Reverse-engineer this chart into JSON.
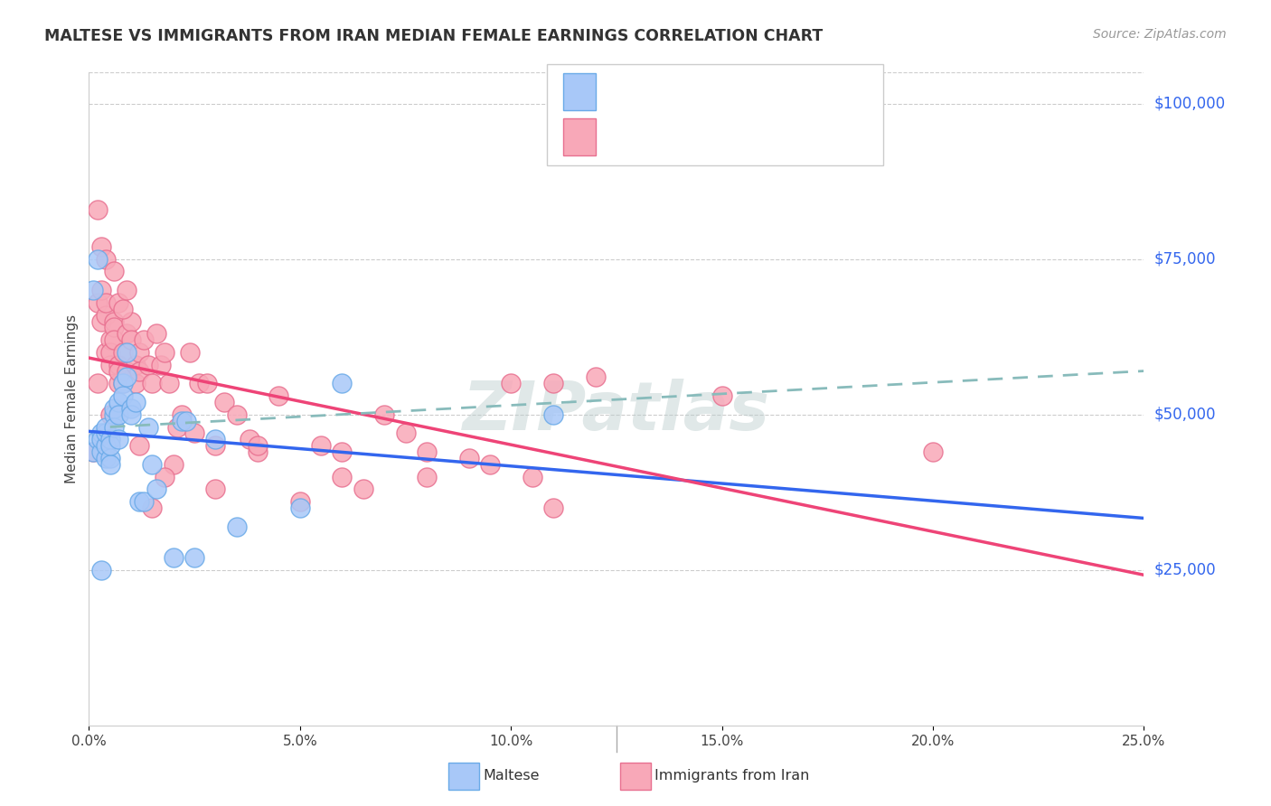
{
  "title": "MALTESE VS IMMIGRANTS FROM IRAN MEDIAN FEMALE EARNINGS CORRELATION CHART",
  "source": "Source: ZipAtlas.com",
  "ylabel": "Median Female Earnings",
  "ytick_labels": [
    "$25,000",
    "$50,000",
    "$75,000",
    "$100,000"
  ],
  "ytick_values": [
    25000,
    50000,
    75000,
    100000
  ],
  "ylim": [
    0,
    105000
  ],
  "xlim": [
    0,
    0.25
  ],
  "watermark": "ZIPatlas",
  "maltese_color": "#a8c8f8",
  "iran_color": "#f8a8b8",
  "maltese_edge": "#6aaae8",
  "iran_edge": "#e87090",
  "blue_line_color": "#3366ee",
  "pink_line_color": "#ee4477",
  "dashed_line_color": "#88bbbb",
  "maltese_x": [
    0.001,
    0.002,
    0.002,
    0.003,
    0.003,
    0.003,
    0.004,
    0.004,
    0.004,
    0.004,
    0.005,
    0.005,
    0.005,
    0.005,
    0.006,
    0.006,
    0.006,
    0.007,
    0.007,
    0.007,
    0.008,
    0.008,
    0.009,
    0.009,
    0.01,
    0.01,
    0.011,
    0.012,
    0.013,
    0.014,
    0.015,
    0.016,
    0.02,
    0.022,
    0.023,
    0.025,
    0.03,
    0.035,
    0.05,
    0.06,
    0.001,
    0.003,
    0.11
  ],
  "maltese_y": [
    44000,
    75000,
    46000,
    47000,
    44000,
    46000,
    43000,
    45000,
    47000,
    48000,
    46000,
    43000,
    42000,
    45000,
    50000,
    51000,
    48000,
    52000,
    50000,
    46000,
    55000,
    53000,
    60000,
    56000,
    51000,
    50000,
    52000,
    36000,
    36000,
    48000,
    42000,
    38000,
    27000,
    49000,
    49000,
    27000,
    46000,
    32000,
    35000,
    55000,
    70000,
    25000,
    50000
  ],
  "iran_x": [
    0.001,
    0.002,
    0.002,
    0.003,
    0.003,
    0.004,
    0.004,
    0.004,
    0.005,
    0.005,
    0.005,
    0.006,
    0.006,
    0.006,
    0.007,
    0.007,
    0.007,
    0.008,
    0.008,
    0.009,
    0.009,
    0.01,
    0.01,
    0.011,
    0.011,
    0.012,
    0.012,
    0.013,
    0.014,
    0.015,
    0.016,
    0.017,
    0.018,
    0.019,
    0.02,
    0.021,
    0.022,
    0.024,
    0.026,
    0.028,
    0.03,
    0.032,
    0.035,
    0.038,
    0.04,
    0.045,
    0.05,
    0.055,
    0.06,
    0.065,
    0.07,
    0.075,
    0.08,
    0.09,
    0.095,
    0.1,
    0.105,
    0.11,
    0.12,
    0.002,
    0.003,
    0.004,
    0.005,
    0.006,
    0.007,
    0.008,
    0.009,
    0.012,
    0.015,
    0.018,
    0.025,
    0.03,
    0.04,
    0.06,
    0.08,
    0.11,
    0.15,
    0.2
  ],
  "iran_y": [
    44000,
    68000,
    55000,
    65000,
    70000,
    66000,
    68000,
    60000,
    62000,
    58000,
    60000,
    65000,
    64000,
    62000,
    58000,
    55000,
    57000,
    55000,
    60000,
    57000,
    63000,
    65000,
    62000,
    55000,
    58000,
    60000,
    57000,
    62000,
    58000,
    55000,
    63000,
    58000,
    60000,
    55000,
    42000,
    48000,
    50000,
    60000,
    55000,
    55000,
    45000,
    52000,
    50000,
    46000,
    44000,
    53000,
    36000,
    45000,
    44000,
    38000,
    50000,
    47000,
    44000,
    43000,
    42000,
    55000,
    40000,
    55000,
    56000,
    83000,
    77000,
    75000,
    50000,
    73000,
    68000,
    67000,
    70000,
    45000,
    35000,
    40000,
    47000,
    38000,
    45000,
    40000,
    40000,
    35000,
    53000,
    44000
  ]
}
